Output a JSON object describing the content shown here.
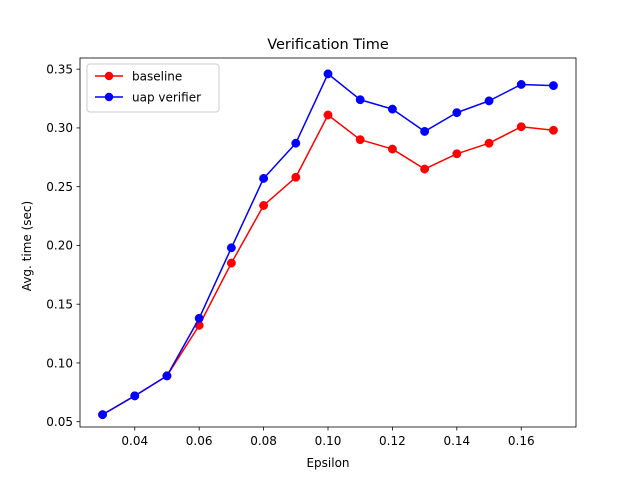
{
  "chart_data": {
    "type": "line",
    "title": "Verification Time",
    "xlabel": "Epsilon",
    "ylabel": "Avg. time (sec)",
    "xlim": [
      0.023,
      0.177
    ],
    "ylim": [
      0.0455,
      0.3595
    ],
    "xticks": [
      0.04,
      0.06,
      0.08,
      0.1,
      0.12,
      0.14,
      0.16
    ],
    "xtick_labels": [
      "0.04",
      "0.06",
      "0.08",
      "0.10",
      "0.12",
      "0.14",
      "0.16"
    ],
    "yticks": [
      0.05,
      0.1,
      0.15,
      0.2,
      0.25,
      0.3,
      0.35
    ],
    "ytick_labels": [
      "0.05",
      "0.10",
      "0.15",
      "0.20",
      "0.25",
      "0.30",
      "0.35"
    ],
    "grid": false,
    "legend_position": "upper-left",
    "x": [
      0.03,
      0.04,
      0.05,
      0.06,
      0.07,
      0.08,
      0.09,
      0.1,
      0.11,
      0.12,
      0.13,
      0.14,
      0.15,
      0.16,
      0.17
    ],
    "series": [
      {
        "name": "baseline",
        "color": "#ff0000",
        "marker": "circle",
        "values": [
          0.056,
          0.072,
          0.089,
          0.132,
          0.185,
          0.234,
          0.258,
          0.311,
          0.29,
          0.282,
          0.265,
          0.278,
          0.287,
          0.301,
          0.298
        ]
      },
      {
        "name": "uap verifier",
        "color": "#0000ff",
        "marker": "circle",
        "values": [
          0.056,
          0.072,
          0.089,
          0.138,
          0.198,
          0.257,
          0.287,
          0.346,
          0.324,
          0.316,
          0.297,
          0.313,
          0.323,
          0.337,
          0.336
        ]
      }
    ]
  }
}
